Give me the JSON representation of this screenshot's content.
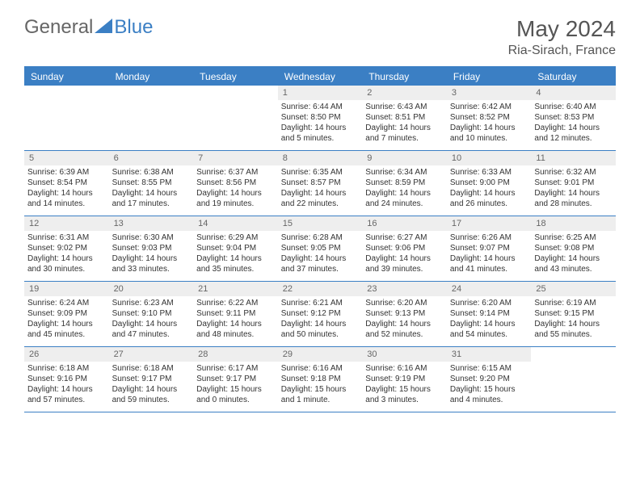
{
  "brand": {
    "part1": "General",
    "part2": "Blue"
  },
  "title": {
    "month": "May 2024",
    "location": "Ria-Sirach, France"
  },
  "day_names": [
    "Sunday",
    "Monday",
    "Tuesday",
    "Wednesday",
    "Thursday",
    "Friday",
    "Saturday"
  ],
  "colors": {
    "header_bg": "#3b7fc4",
    "header_text": "#ffffff",
    "daynum_bg": "#eeeeee",
    "border": "#3b7fc4",
    "text": "#333333"
  },
  "fonts": {
    "title_size": 28,
    "location_size": 16,
    "dayname_size": 12,
    "cell_size": 10
  },
  "weeks": [
    [
      {
        "n": "",
        "sr": "",
        "ss": "",
        "dl": ""
      },
      {
        "n": "",
        "sr": "",
        "ss": "",
        "dl": ""
      },
      {
        "n": "",
        "sr": "",
        "ss": "",
        "dl": ""
      },
      {
        "n": "1",
        "sr": "Sunrise: 6:44 AM",
        "ss": "Sunset: 8:50 PM",
        "dl": "Daylight: 14 hours and 5 minutes."
      },
      {
        "n": "2",
        "sr": "Sunrise: 6:43 AM",
        "ss": "Sunset: 8:51 PM",
        "dl": "Daylight: 14 hours and 7 minutes."
      },
      {
        "n": "3",
        "sr": "Sunrise: 6:42 AM",
        "ss": "Sunset: 8:52 PM",
        "dl": "Daylight: 14 hours and 10 minutes."
      },
      {
        "n": "4",
        "sr": "Sunrise: 6:40 AM",
        "ss": "Sunset: 8:53 PM",
        "dl": "Daylight: 14 hours and 12 minutes."
      }
    ],
    [
      {
        "n": "5",
        "sr": "Sunrise: 6:39 AM",
        "ss": "Sunset: 8:54 PM",
        "dl": "Daylight: 14 hours and 14 minutes."
      },
      {
        "n": "6",
        "sr": "Sunrise: 6:38 AM",
        "ss": "Sunset: 8:55 PM",
        "dl": "Daylight: 14 hours and 17 minutes."
      },
      {
        "n": "7",
        "sr": "Sunrise: 6:37 AM",
        "ss": "Sunset: 8:56 PM",
        "dl": "Daylight: 14 hours and 19 minutes."
      },
      {
        "n": "8",
        "sr": "Sunrise: 6:35 AM",
        "ss": "Sunset: 8:57 PM",
        "dl": "Daylight: 14 hours and 22 minutes."
      },
      {
        "n": "9",
        "sr": "Sunrise: 6:34 AM",
        "ss": "Sunset: 8:59 PM",
        "dl": "Daylight: 14 hours and 24 minutes."
      },
      {
        "n": "10",
        "sr": "Sunrise: 6:33 AM",
        "ss": "Sunset: 9:00 PM",
        "dl": "Daylight: 14 hours and 26 minutes."
      },
      {
        "n": "11",
        "sr": "Sunrise: 6:32 AM",
        "ss": "Sunset: 9:01 PM",
        "dl": "Daylight: 14 hours and 28 minutes."
      }
    ],
    [
      {
        "n": "12",
        "sr": "Sunrise: 6:31 AM",
        "ss": "Sunset: 9:02 PM",
        "dl": "Daylight: 14 hours and 30 minutes."
      },
      {
        "n": "13",
        "sr": "Sunrise: 6:30 AM",
        "ss": "Sunset: 9:03 PM",
        "dl": "Daylight: 14 hours and 33 minutes."
      },
      {
        "n": "14",
        "sr": "Sunrise: 6:29 AM",
        "ss": "Sunset: 9:04 PM",
        "dl": "Daylight: 14 hours and 35 minutes."
      },
      {
        "n": "15",
        "sr": "Sunrise: 6:28 AM",
        "ss": "Sunset: 9:05 PM",
        "dl": "Daylight: 14 hours and 37 minutes."
      },
      {
        "n": "16",
        "sr": "Sunrise: 6:27 AM",
        "ss": "Sunset: 9:06 PM",
        "dl": "Daylight: 14 hours and 39 minutes."
      },
      {
        "n": "17",
        "sr": "Sunrise: 6:26 AM",
        "ss": "Sunset: 9:07 PM",
        "dl": "Daylight: 14 hours and 41 minutes."
      },
      {
        "n": "18",
        "sr": "Sunrise: 6:25 AM",
        "ss": "Sunset: 9:08 PM",
        "dl": "Daylight: 14 hours and 43 minutes."
      }
    ],
    [
      {
        "n": "19",
        "sr": "Sunrise: 6:24 AM",
        "ss": "Sunset: 9:09 PM",
        "dl": "Daylight: 14 hours and 45 minutes."
      },
      {
        "n": "20",
        "sr": "Sunrise: 6:23 AM",
        "ss": "Sunset: 9:10 PM",
        "dl": "Daylight: 14 hours and 47 minutes."
      },
      {
        "n": "21",
        "sr": "Sunrise: 6:22 AM",
        "ss": "Sunset: 9:11 PM",
        "dl": "Daylight: 14 hours and 48 minutes."
      },
      {
        "n": "22",
        "sr": "Sunrise: 6:21 AM",
        "ss": "Sunset: 9:12 PM",
        "dl": "Daylight: 14 hours and 50 minutes."
      },
      {
        "n": "23",
        "sr": "Sunrise: 6:20 AM",
        "ss": "Sunset: 9:13 PM",
        "dl": "Daylight: 14 hours and 52 minutes."
      },
      {
        "n": "24",
        "sr": "Sunrise: 6:20 AM",
        "ss": "Sunset: 9:14 PM",
        "dl": "Daylight: 14 hours and 54 minutes."
      },
      {
        "n": "25",
        "sr": "Sunrise: 6:19 AM",
        "ss": "Sunset: 9:15 PM",
        "dl": "Daylight: 14 hours and 55 minutes."
      }
    ],
    [
      {
        "n": "26",
        "sr": "Sunrise: 6:18 AM",
        "ss": "Sunset: 9:16 PM",
        "dl": "Daylight: 14 hours and 57 minutes."
      },
      {
        "n": "27",
        "sr": "Sunrise: 6:18 AM",
        "ss": "Sunset: 9:17 PM",
        "dl": "Daylight: 14 hours and 59 minutes."
      },
      {
        "n": "28",
        "sr": "Sunrise: 6:17 AM",
        "ss": "Sunset: 9:17 PM",
        "dl": "Daylight: 15 hours and 0 minutes."
      },
      {
        "n": "29",
        "sr": "Sunrise: 6:16 AM",
        "ss": "Sunset: 9:18 PM",
        "dl": "Daylight: 15 hours and 1 minute."
      },
      {
        "n": "30",
        "sr": "Sunrise: 6:16 AM",
        "ss": "Sunset: 9:19 PM",
        "dl": "Daylight: 15 hours and 3 minutes."
      },
      {
        "n": "31",
        "sr": "Sunrise: 6:15 AM",
        "ss": "Sunset: 9:20 PM",
        "dl": "Daylight: 15 hours and 4 minutes."
      },
      {
        "n": "",
        "sr": "",
        "ss": "",
        "dl": ""
      }
    ]
  ]
}
